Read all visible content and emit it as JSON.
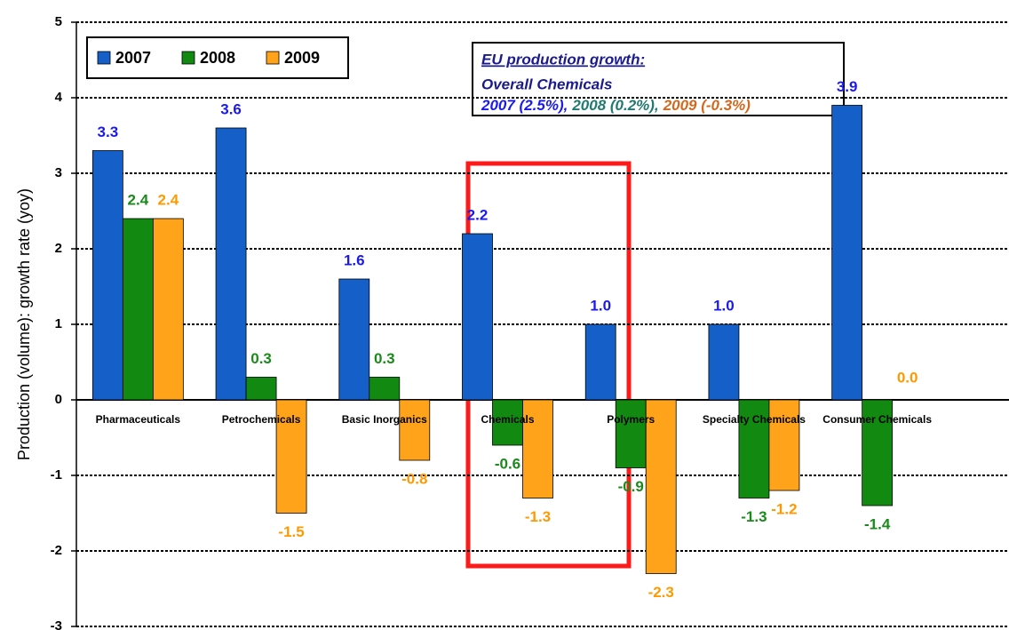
{
  "chart_data": {
    "type": "bar",
    "y_label": "Production (volume): growth rate (yoy)",
    "categories": [
      "Pharmaceuticals",
      "Petrochemicals",
      "Basic Inorganics",
      "Chemicals",
      "Polymers",
      "Specialty Chemicals",
      "Consumer Chemicals"
    ],
    "series": [
      {
        "name": "2007",
        "color": "#1560c8",
        "label_color": "#1a1aee",
        "values": [
          3.3,
          3.6,
          1.6,
          2.2,
          1.0,
          1.0,
          3.9
        ],
        "value_labels": [
          "3.3",
          "3.6",
          "1.6",
          "2.2",
          "1.0",
          "1.0",
          "3.9"
        ]
      },
      {
        "name": "2008",
        "color": "#128a12",
        "label_color": "#1a8a1a",
        "values": [
          2.4,
          0.3,
          0.3,
          -0.6,
          -0.9,
          -1.3,
          -1.4
        ],
        "value_labels": [
          "2.4",
          "0.3",
          "0.3",
          "-0.6",
          "-0.9",
          "-1.3",
          "-1.4"
        ]
      },
      {
        "name": "2009",
        "color": "#ffa31a",
        "label_color": "#ff9900",
        "values": [
          2.4,
          -1.5,
          -0.8,
          -1.3,
          -2.3,
          -1.2,
          0.0
        ],
        "value_labels": [
          "2.4",
          "-1.5",
          "-0.8",
          "-1.3",
          "-2.3",
          "-1.2",
          "0.0"
        ]
      }
    ],
    "ylim": [
      -3,
      5
    ],
    "yticks": [
      -3,
      -2,
      -1,
      0,
      1,
      2,
      3,
      4,
      5
    ],
    "grid": true,
    "legend": "top-left",
    "annotation": {
      "title": "EU production growth:",
      "subtitle": "Overall Chemicals",
      "items": [
        {
          "text": "2007 (2.5%),",
          "color": "#1a1aee"
        },
        {
          "text": "2008 (0.2%),",
          "color": "#1f7a6f"
        },
        {
          "text": "2009 (-0.3%)",
          "color": "#d2691e"
        }
      ]
    }
  }
}
